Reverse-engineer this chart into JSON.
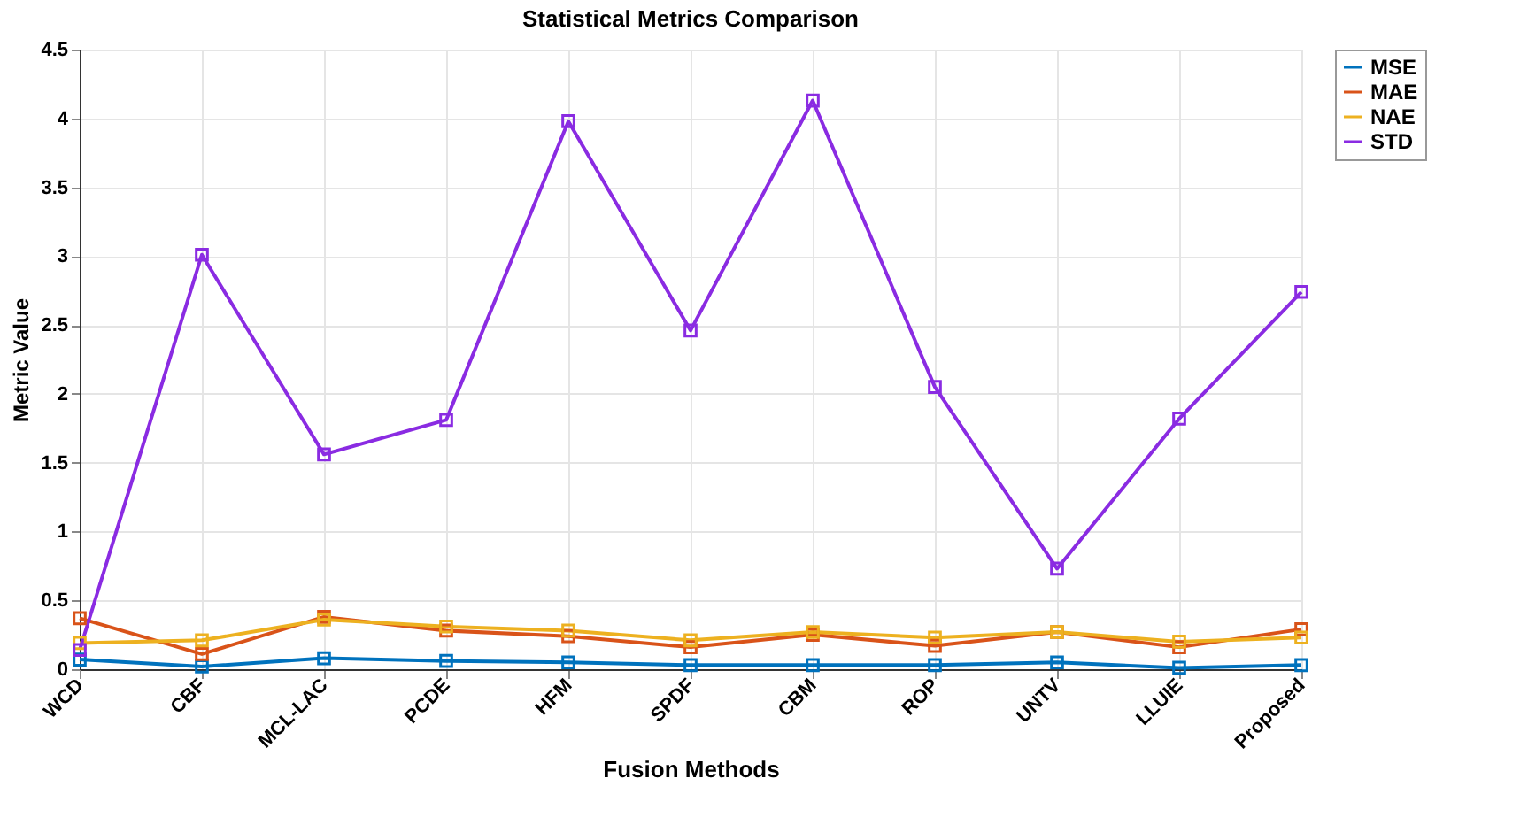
{
  "chart_data": {
    "type": "line",
    "title": "Statistical Metrics Comparison",
    "xlabel": "Fusion Methods",
    "ylabel": "Metric Value",
    "categories": [
      "WCD",
      "CBF",
      "MCL-LAC",
      "PCDE",
      "HFM",
      "SPDF",
      "CBM",
      "ROP",
      "UNTV",
      "LLUIE",
      "Proposed"
    ],
    "series": [
      {
        "name": "MSE",
        "color": "#0072bd",
        "values": [
          0.07,
          0.02,
          0.08,
          0.06,
          0.05,
          0.03,
          0.03,
          0.03,
          0.05,
          0.01,
          0.03
        ]
      },
      {
        "name": "MAE",
        "color": "#d95319",
        "values": [
          0.37,
          0.11,
          0.38,
          0.28,
          0.24,
          0.16,
          0.25,
          0.17,
          0.27,
          0.16,
          0.29
        ]
      },
      {
        "name": "NAE",
        "color": "#edb120",
        "values": [
          0.19,
          0.21,
          0.36,
          0.31,
          0.28,
          0.21,
          0.27,
          0.23,
          0.27,
          0.2,
          0.23
        ]
      },
      {
        "name": "STD",
        "color": "#8a2be2",
        "values": [
          0.14,
          3.01,
          1.56,
          1.81,
          3.98,
          2.46,
          4.13,
          2.05,
          0.73,
          1.82,
          2.74
        ]
      }
    ],
    "ylim": [
      0,
      4.5
    ],
    "yticks": [
      0,
      0.5,
      1,
      1.5,
      2,
      2.5,
      3,
      3.5,
      4,
      4.5
    ],
    "grid": true,
    "legend": "right",
    "marker": "square",
    "line_style": "solid"
  }
}
